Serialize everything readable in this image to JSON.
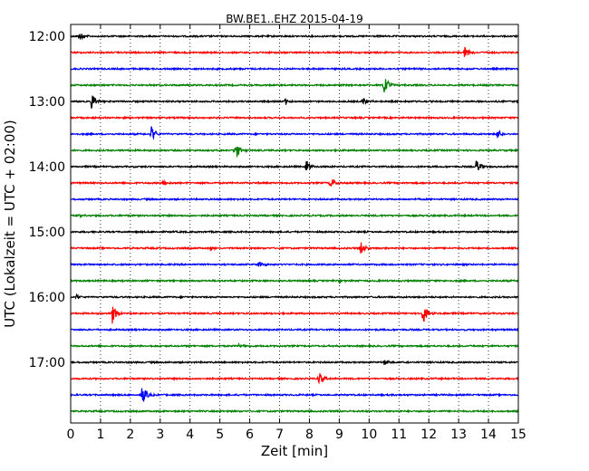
{
  "chart_data": {
    "type": "line",
    "title": "BW.BE1..EHZ 2015-04-19",
    "xlabel": "Zeit  [min]",
    "ylabel": "UTC (Lokalzeit = UTC + 02:00)",
    "xlim": [
      0,
      15
    ],
    "x_ticks": [
      "0",
      "1",
      "2",
      "3",
      "4",
      "5",
      "6",
      "7",
      "8",
      "9",
      "10",
      "11",
      "12",
      "13",
      "14",
      "15"
    ],
    "y_ticks": [
      "12:00",
      "13:00",
      "14:00",
      "15:00",
      "16:00",
      "17:00"
    ],
    "grid": "vertical dotted",
    "trace_interval_min": 15,
    "trace_colors": [
      "#000000",
      "#ff0000",
      "#0000ff",
      "#008000"
    ],
    "series": [
      {
        "start": "12:00",
        "events": [
          {
            "t": 0.3,
            "amp": 0.4
          }
        ]
      },
      {
        "start": "12:15",
        "events": [
          {
            "t": 13.2,
            "amp": 0.5
          }
        ]
      },
      {
        "start": "12:30",
        "events": []
      },
      {
        "start": "12:45",
        "events": [
          {
            "t": 10.5,
            "amp": 1.0
          }
        ]
      },
      {
        "start": "13:00",
        "events": [
          {
            "t": 0.7,
            "amp": 0.9
          },
          {
            "t": 7.2,
            "amp": 0.3
          },
          {
            "t": 9.8,
            "amp": 0.4
          }
        ]
      },
      {
        "start": "13:15",
        "events": []
      },
      {
        "start": "13:30",
        "events": [
          {
            "t": 2.7,
            "amp": 0.8
          },
          {
            "t": 14.3,
            "amp": 0.6
          }
        ]
      },
      {
        "start": "13:45",
        "events": [
          {
            "t": 5.5,
            "amp": 0.9
          }
        ]
      },
      {
        "start": "14:00",
        "events": [
          {
            "t": 7.9,
            "amp": 0.6
          },
          {
            "t": 13.6,
            "amp": 0.7
          }
        ]
      },
      {
        "start": "14:15",
        "events": [
          {
            "t": 3.1,
            "amp": 0.3
          },
          {
            "t": 8.7,
            "amp": 0.5
          }
        ]
      },
      {
        "start": "14:30",
        "events": []
      },
      {
        "start": "14:45",
        "events": [
          {
            "t": 0.3,
            "amp": 0.15
          }
        ]
      },
      {
        "start": "15:00",
        "events": []
      },
      {
        "start": "15:15",
        "events": [
          {
            "t": 4.7,
            "amp": 0.2
          },
          {
            "t": 9.7,
            "amp": 0.7
          }
        ]
      },
      {
        "start": "15:30",
        "events": [
          {
            "t": 6.3,
            "amp": 0.3
          }
        ]
      },
      {
        "start": "15:45",
        "events": [
          {
            "t": 9.0,
            "amp": 0.2
          }
        ]
      },
      {
        "start": "16:00",
        "events": [
          {
            "t": 0.2,
            "amp": 0.2
          }
        ]
      },
      {
        "start": "16:15",
        "events": [
          {
            "t": 1.4,
            "amp": 0.9
          },
          {
            "t": 11.8,
            "amp": 0.9
          }
        ]
      },
      {
        "start": "16:30",
        "events": []
      },
      {
        "start": "16:45",
        "events": [
          {
            "t": 5.6,
            "amp": 0.2
          }
        ]
      },
      {
        "start": "17:00",
        "events": [
          {
            "t": 10.5,
            "amp": 0.3
          }
        ]
      },
      {
        "start": "17:15",
        "events": [
          {
            "t": 8.3,
            "amp": 0.6
          }
        ]
      },
      {
        "start": "17:30",
        "events": [
          {
            "t": 2.4,
            "amp": 0.8
          }
        ]
      },
      {
        "start": "17:45",
        "events": []
      }
    ]
  }
}
